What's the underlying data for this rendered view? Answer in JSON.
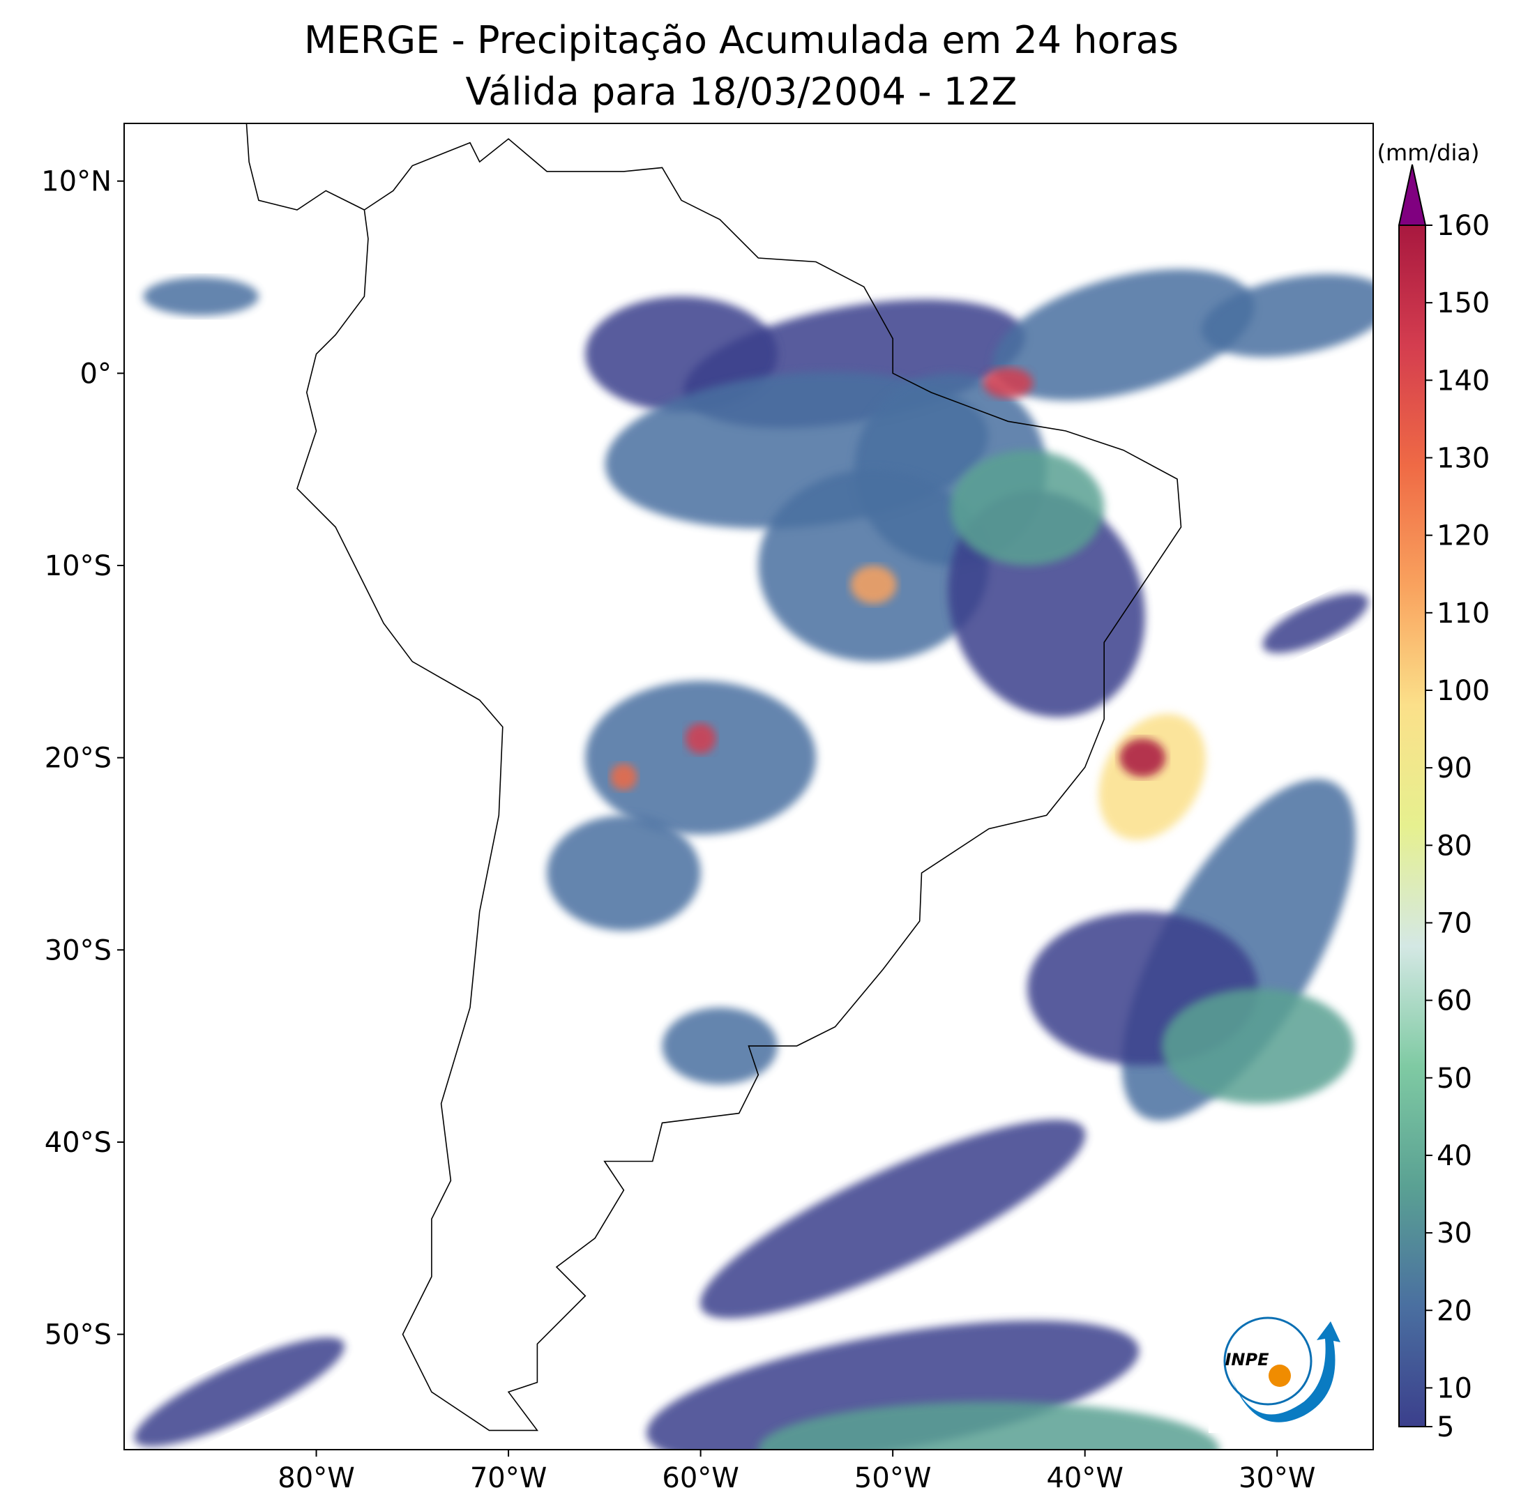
{
  "title": "MERGE - Precipitação Acumulada em 24 horas",
  "subtitle": "Válida para 18/03/2004 - 12Z",
  "map": {
    "xlim": [
      -90,
      -25
    ],
    "ylim": [
      -56,
      13
    ],
    "xticks": [
      {
        "value": -80,
        "label": "80°W"
      },
      {
        "value": -70,
        "label": "70°W"
      },
      {
        "value": -60,
        "label": "60°W"
      },
      {
        "value": -50,
        "label": "50°W"
      },
      {
        "value": -40,
        "label": "40°W"
      },
      {
        "value": -30,
        "label": "30°W"
      }
    ],
    "yticks": [
      {
        "value": 10,
        "label": "10°N"
      },
      {
        "value": 0,
        "label": "0°"
      },
      {
        "value": -10,
        "label": "10°S"
      },
      {
        "value": -20,
        "label": "20°S"
      },
      {
        "value": -30,
        "label": "30°S"
      },
      {
        "value": -40,
        "label": "40°S"
      },
      {
        "value": -50,
        "label": "50°S"
      }
    ]
  },
  "colorbar": {
    "label": "(mm/dia)",
    "lim": [
      5,
      160
    ],
    "ticks": [
      5,
      10,
      20,
      30,
      40,
      50,
      60,
      70,
      80,
      90,
      100,
      110,
      120,
      130,
      140,
      150,
      160
    ],
    "colors": [
      "#3b3f8c",
      "#4a6fa0",
      "#5aa193",
      "#7fcaa3",
      "#d4e8e4",
      "#e6f08f",
      "#fbe08a",
      "#f9a25e",
      "#ef6a45",
      "#d43d4f",
      "#a8183f"
    ],
    "extend_color": "#800080"
  },
  "logo": "INPE"
}
